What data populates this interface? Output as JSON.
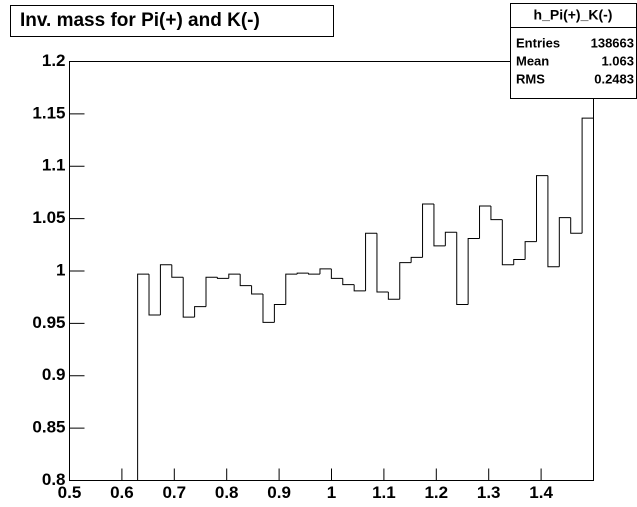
{
  "chart_data": {
    "type": "histogram",
    "title": "Inv. mass for Pi(+) and K(-)",
    "bins": [
      0.63,
      0.65175,
      0.6735,
      0.69525,
      0.717,
      0.73875,
      0.7605,
      0.78225,
      0.804,
      0.82575,
      0.8475,
      0.86925,
      0.891,
      0.91275,
      0.9345,
      0.95625,
      0.978,
      0.99975,
      1.0215,
      1.04325,
      1.065,
      1.08675,
      1.1085,
      1.13025,
      1.152,
      1.17375,
      1.1955,
      1.21725,
      1.239,
      1.26075,
      1.2825,
      1.30425,
      1.326,
      1.34775,
      1.3695,
      1.39125,
      1.413,
      1.43475,
      1.4565,
      1.47825,
      1.5
    ],
    "values": [
      0.997,
      0.958,
      1.006,
      0.994,
      0.956,
      0.966,
      0.994,
      0.993,
      0.997,
      0.986,
      0.978,
      0.951,
      0.968,
      0.997,
      0.998,
      0.997,
      1.002,
      0.993,
      0.987,
      0.981,
      1.036,
      0.98,
      0.973,
      1.008,
      1.013,
      1.064,
      1.024,
      1.037,
      0.968,
      1.031,
      1.062,
      1.049,
      1.006,
      1.011,
      1.028,
      1.091,
      1.004,
      1.051,
      1.036,
      1.146
    ],
    "color": "#000000",
    "xlim": [
      0.5,
      1.5
    ],
    "xticks": [
      0.5,
      0.6,
      0.7,
      0.8,
      0.9,
      1,
      1.1,
      1.2,
      1.3,
      1.4
    ],
    "ylim": [
      0.8,
      1.2
    ],
    "yticks": [
      0.8,
      0.85,
      0.9,
      0.95,
      1,
      1.05,
      1.1,
      1.15,
      1.2
    ],
    "stats": {
      "title": "h_Pi(+)_K(-)",
      "rows": [
        {
          "label": "Entries",
          "value": 138663
        },
        {
          "label": "Mean",
          "value": 1.063
        },
        {
          "label": "RMS",
          "value": 0.2483
        }
      ]
    }
  }
}
